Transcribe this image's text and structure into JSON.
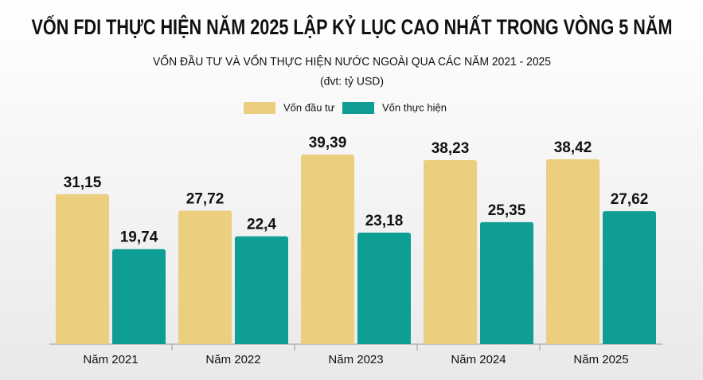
{
  "chart_data": {
    "type": "bar",
    "title": "VỐN FDI THỰC HIỆN NĂM 2025 LẬP KỶ LỤC CAO NHẤT TRONG VÒNG 5 NĂM",
    "subtitle": "VỐN ĐẦU TƯ VÀ VỐN THỰC HIỆN NƯỚC NGOÀI QUA CÁC NĂM 2021 - 2025",
    "unit": "(đvt: tỷ USD)",
    "categories": [
      "Năm 2021",
      "Năm 2022",
      "Năm 2023",
      "Năm 2024",
      "Năm 2025"
    ],
    "series": [
      {
        "name": "Vốn đầu tư",
        "color": "#ecce7f",
        "values": [
          31.15,
          27.72,
          39.39,
          38.23,
          38.42
        ],
        "value_labels": [
          "31,15",
          "27,72",
          "39,39",
          "38,23",
          "38,42"
        ]
      },
      {
        "name": "Vốn thực hiện",
        "color": "#0e9e94",
        "values": [
          19.74,
          22.4,
          23.18,
          25.35,
          27.62
        ],
        "value_labels": [
          "19,74",
          "22,4",
          "23,18",
          "25,35",
          "27,62"
        ]
      }
    ]
  }
}
